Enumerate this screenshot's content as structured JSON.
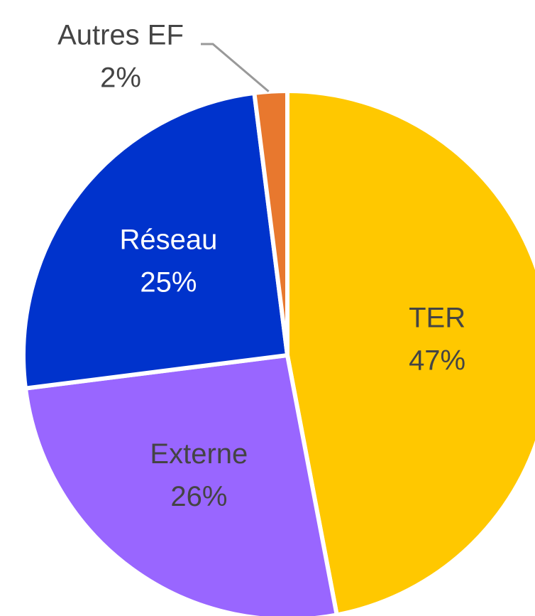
{
  "chart_data": {
    "type": "pie",
    "categories": [
      "TER",
      "Externe",
      "Réseau",
      "Autres EF"
    ],
    "values": [
      47,
      26,
      25,
      2
    ],
    "value_labels": [
      "47%",
      "26%",
      "25%",
      "2%"
    ],
    "colors": [
      "#ffc800",
      "#9966ff",
      "#0033cc",
      "#e8782e"
    ]
  }
}
